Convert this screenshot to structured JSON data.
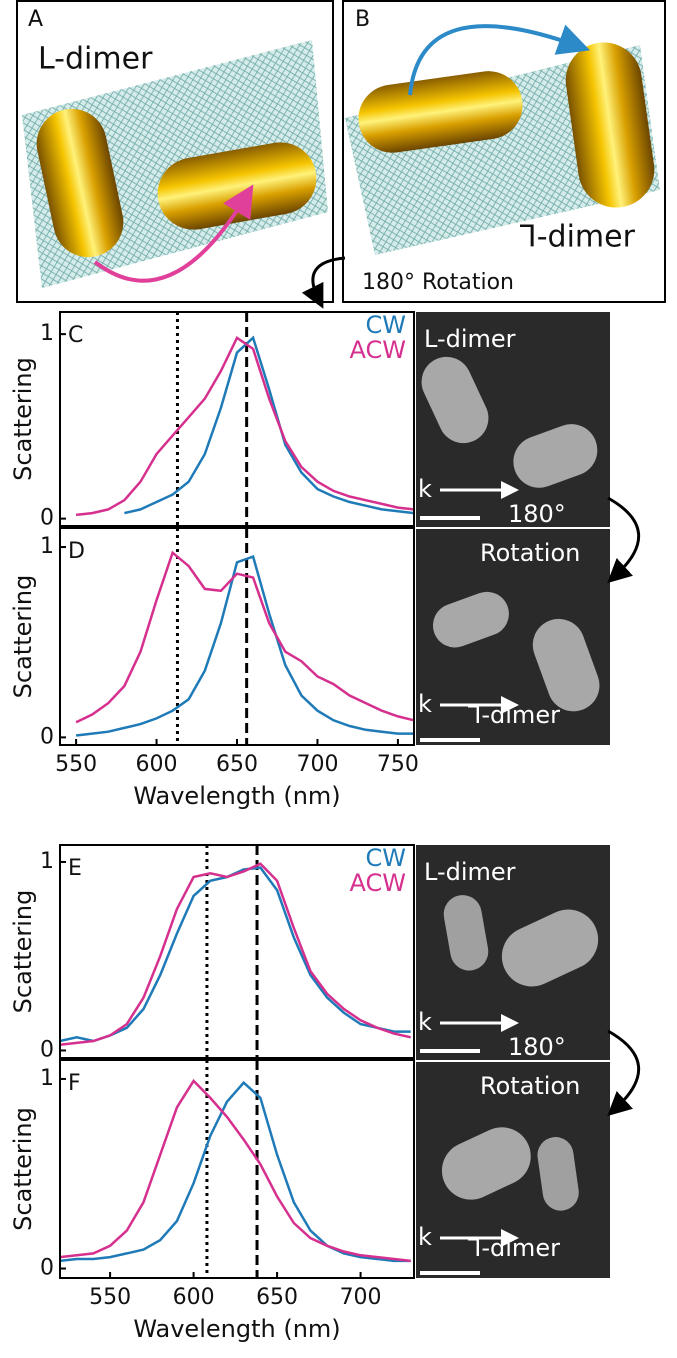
{
  "figure": {
    "panel_a": {
      "label": "A",
      "title": "L-dimer"
    },
    "panel_b": {
      "label": "B",
      "title": "⅂-dimer",
      "rotation": "180° Rotation"
    },
    "sem_top": {
      "title": "L-dimer",
      "k": "k",
      "angle": "180°",
      "rotation": "Rotation",
      "bottom_title": "⅂-dimer",
      "k2": "k"
    },
    "sem_bottom": {
      "title": "L-dimer",
      "k": "k",
      "angle": "180°",
      "rotation": "Rotation",
      "bottom_title": "⅂-dimer",
      "k2": "k"
    }
  },
  "chart_data": [
    {
      "type": "line",
      "panel": "C",
      "ylabel": "Scattering",
      "xlim": [
        540,
        760
      ],
      "ylim": [
        -0.04,
        1.12
      ],
      "yticks": [
        0,
        1
      ],
      "vlines": [
        {
          "value": 613,
          "style": "dotted"
        },
        {
          "value": 656,
          "style": "dashed"
        }
      ],
      "legend": true,
      "x": [
        550,
        560,
        570,
        580,
        590,
        600,
        610,
        620,
        630,
        640,
        650,
        660,
        670,
        680,
        690,
        700,
        710,
        720,
        730,
        740,
        750,
        760
      ],
      "series": [
        {
          "name": "CW",
          "color": "#1f7ab8",
          "values": [
            null,
            null,
            null,
            0.03,
            0.05,
            0.09,
            0.13,
            0.2,
            0.35,
            0.6,
            0.9,
            0.98,
            0.7,
            0.4,
            0.25,
            0.16,
            0.12,
            0.09,
            0.07,
            0.05,
            0.04,
            0.03
          ]
        },
        {
          "name": "ACW",
          "color": "#d6308f",
          "values": [
            0.02,
            0.03,
            0.05,
            0.1,
            0.2,
            0.35,
            0.45,
            0.55,
            0.65,
            0.8,
            0.98,
            0.92,
            0.65,
            0.42,
            0.28,
            0.2,
            0.15,
            0.12,
            0.1,
            0.08,
            0.06,
            0.05
          ]
        }
      ]
    },
    {
      "type": "line",
      "panel": "D",
      "ylabel": "Scattering",
      "xlabel": "Wavelength (nm)",
      "xlim": [
        540,
        760
      ],
      "ylim": [
        -0.04,
        1.1
      ],
      "yticks": [
        0,
        1
      ],
      "xticks": [
        550,
        600,
        650,
        700,
        750
      ],
      "vlines": [
        {
          "value": 613,
          "style": "dotted"
        },
        {
          "value": 656,
          "style": "dashed"
        }
      ],
      "x": [
        550,
        560,
        570,
        580,
        590,
        600,
        610,
        620,
        630,
        640,
        650,
        660,
        670,
        680,
        690,
        700,
        710,
        720,
        730,
        740,
        750,
        760
      ],
      "series": [
        {
          "name": "CW",
          "color": "#1f7ab8",
          "values": [
            0.01,
            0.02,
            0.03,
            0.05,
            0.07,
            0.1,
            0.14,
            0.2,
            0.35,
            0.6,
            0.92,
            0.95,
            0.65,
            0.38,
            0.22,
            0.14,
            0.09,
            0.06,
            0.04,
            0.03,
            0.02,
            0.02
          ]
        },
        {
          "name": "ACW",
          "color": "#d6308f",
          "values": [
            0.08,
            0.12,
            0.18,
            0.27,
            0.45,
            0.72,
            0.97,
            0.9,
            0.78,
            0.77,
            0.86,
            0.84,
            0.6,
            0.45,
            0.4,
            0.32,
            0.28,
            0.22,
            0.18,
            0.14,
            0.11,
            0.09
          ]
        }
      ]
    },
    {
      "type": "line",
      "panel": "E",
      "ylabel": "Scattering",
      "xlim": [
        520,
        732
      ],
      "ylim": [
        -0.04,
        1.09
      ],
      "yticks": [
        0,
        1
      ],
      "vlines": [
        {
          "value": 608,
          "style": "dotted"
        },
        {
          "value": 638,
          "style": "dashed"
        }
      ],
      "legend": true,
      "x": [
        520,
        530,
        540,
        550,
        560,
        570,
        580,
        590,
        600,
        610,
        620,
        630,
        640,
        650,
        660,
        670,
        680,
        690,
        700,
        710,
        720,
        730
      ],
      "series": [
        {
          "name": "CW",
          "color": "#1f7ab8",
          "values": [
            0.05,
            0.07,
            0.05,
            0.08,
            0.12,
            0.22,
            0.4,
            0.62,
            0.82,
            0.9,
            0.92,
            0.96,
            0.97,
            0.85,
            0.6,
            0.4,
            0.28,
            0.2,
            0.14,
            0.12,
            0.1,
            0.1
          ]
        },
        {
          "name": "ACW",
          "color": "#d6308f",
          "values": [
            0.03,
            0.04,
            0.05,
            0.08,
            0.14,
            0.28,
            0.5,
            0.75,
            0.92,
            0.94,
            0.92,
            0.95,
            0.99,
            0.9,
            0.65,
            0.42,
            0.3,
            0.22,
            0.16,
            0.12,
            0.09,
            0.07
          ]
        }
      ]
    },
    {
      "type": "line",
      "panel": "F",
      "ylabel": "Scattering",
      "xlabel": "Wavelength (nm)",
      "xlim": [
        520,
        732
      ],
      "ylim": [
        -0.05,
        1.1
      ],
      "yticks": [
        0,
        1
      ],
      "xticks": [
        550,
        600,
        650,
        700
      ],
      "vlines": [
        {
          "value": 608,
          "style": "dotted"
        },
        {
          "value": 638,
          "style": "dashed"
        }
      ],
      "x": [
        520,
        530,
        540,
        550,
        560,
        570,
        580,
        590,
        600,
        610,
        620,
        630,
        640,
        650,
        660,
        670,
        680,
        690,
        700,
        710,
        720,
        730
      ],
      "series": [
        {
          "name": "CW",
          "color": "#1f7ab8",
          "values": [
            0.04,
            0.05,
            0.05,
            0.06,
            0.08,
            0.1,
            0.15,
            0.25,
            0.45,
            0.7,
            0.88,
            0.98,
            0.9,
            0.6,
            0.35,
            0.2,
            0.12,
            0.08,
            0.06,
            0.05,
            0.04,
            0.04
          ]
        },
        {
          "name": "ACW",
          "color": "#d6308f",
          "values": [
            0.06,
            0.07,
            0.08,
            0.12,
            0.2,
            0.35,
            0.6,
            0.85,
            0.99,
            0.9,
            0.8,
            0.68,
            0.55,
            0.38,
            0.24,
            0.16,
            0.12,
            0.09,
            0.07,
            0.06,
            0.05,
            0.04
          ]
        }
      ]
    }
  ]
}
